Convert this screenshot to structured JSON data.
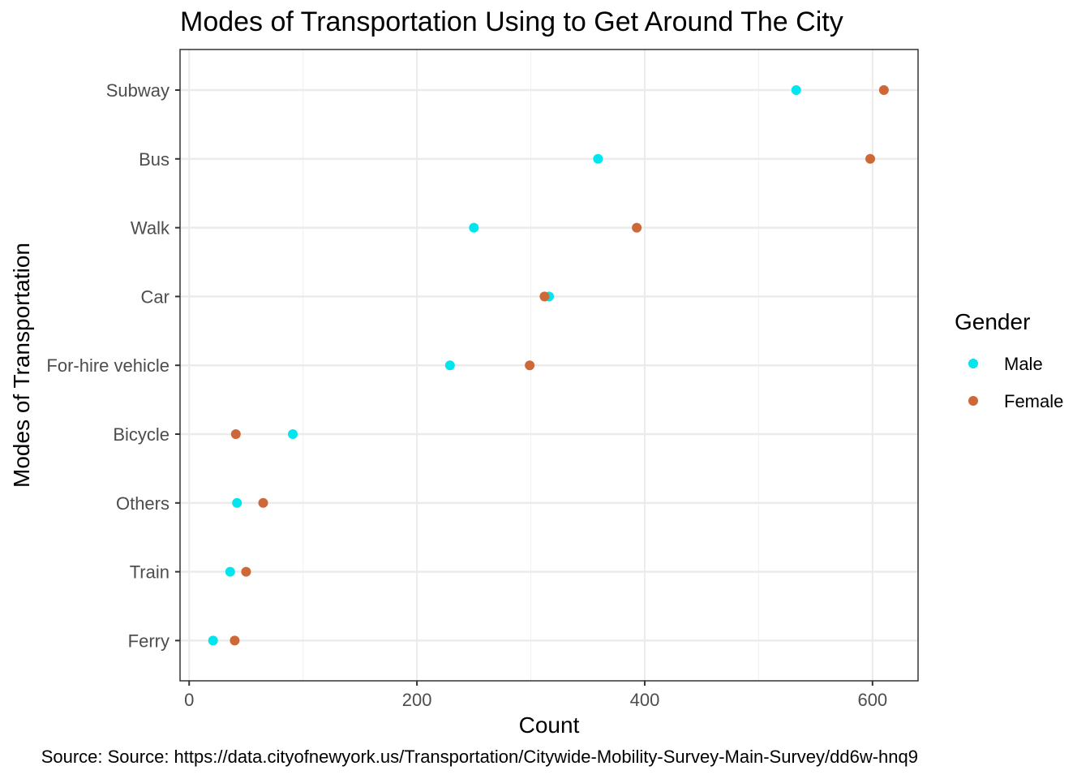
{
  "chart_data": {
    "type": "scatter",
    "title": "Modes of Transportation Using to Get Around The City",
    "xlabel": "Count",
    "ylabel": "Modes of Transportation",
    "caption": "Source: Source: https://data.cityofnewyork.us/Transportation/Citywide-Mobility-Survey-Main-Survey/dd6w-hnq9",
    "categories": [
      "Subway",
      "Bus",
      "Walk",
      "Car",
      "For-hire vehicle",
      "Bicycle",
      "Others",
      "Train",
      "Ferry"
    ],
    "xlim": [
      -8,
      640
    ],
    "x_ticks": [
      0,
      200,
      400,
      600
    ],
    "x_tick_labels": [
      "0",
      "200",
      "400",
      "600"
    ],
    "grid": true,
    "legend": {
      "title": "Gender",
      "position": "right"
    },
    "series": [
      {
        "name": "Male",
        "color": "#00E5EE",
        "values": [
          533,
          359,
          250,
          316,
          229,
          91,
          42,
          36,
          21
        ]
      },
      {
        "name": "Female",
        "color": "#CD6839",
        "values": [
          610,
          598,
          393,
          312,
          299,
          41,
          65,
          50,
          40
        ]
      }
    ]
  }
}
